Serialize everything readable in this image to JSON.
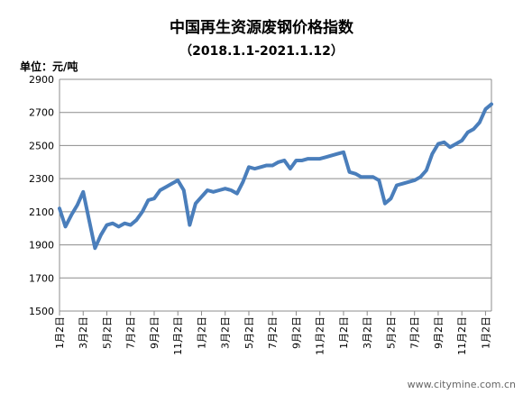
{
  "chart_data": {
    "type": "line",
    "title": "中国再生资源废钢价格指数",
    "subtitle": "（2018.1.1-2021.1.12）",
    "unit_label": "单位：元/吨",
    "watermark": "www.citymine.com.cn",
    "categories": [
      "1月2日",
      null,
      null,
      null,
      "3月2日",
      null,
      null,
      null,
      "5月2日",
      null,
      null,
      null,
      "7月2日",
      null,
      null,
      null,
      "9月2日",
      null,
      null,
      null,
      "11月2日",
      null,
      null,
      null,
      "1月2日",
      null,
      null,
      null,
      "3月2日",
      null,
      null,
      null,
      "5月2日",
      null,
      null,
      null,
      "7月2日",
      null,
      null,
      null,
      "9月2日",
      null,
      null,
      null,
      "11月2日",
      null,
      null,
      null,
      "1月2日",
      null,
      null,
      null,
      "3月2日",
      null,
      null,
      null,
      "5月2日",
      null,
      null,
      null,
      "7月2日",
      null,
      null,
      null,
      "9月2日",
      null,
      null,
      null,
      "11月2日",
      null,
      null,
      null,
      "1月2日",
      null
    ],
    "series": [
      {
        "color": "#4a7ebb",
        "values": [
          2120,
          2010,
          2080,
          2140,
          2220,
          2050,
          1880,
          1960,
          2020,
          2030,
          2010,
          2030,
          2020,
          2050,
          2100,
          2170,
          2180,
          2230,
          2250,
          2270,
          2290,
          2230,
          2020,
          2150,
          2190,
          2230,
          2220,
          2230,
          2240,
          2230,
          2210,
          2280,
          2370,
          2360,
          2370,
          2380,
          2380,
          2400,
          2410,
          2360,
          2410,
          2410,
          2420,
          2420,
          2420,
          2430,
          2440,
          2450,
          2460,
          2340,
          2330,
          2310,
          2310,
          2310,
          2290,
          2150,
          2180,
          2260,
          2270,
          2280,
          2290,
          2310,
          2350,
          2450,
          2510,
          2520,
          2490,
          2510,
          2530,
          2580,
          2600,
          2640,
          2720,
          2750
        ]
      }
    ],
    "ylim": [
      1500,
      2900
    ],
    "yticks": [
      1500,
      1700,
      1900,
      2100,
      2300,
      2500,
      2700,
      2900
    ],
    "grid": true
  }
}
